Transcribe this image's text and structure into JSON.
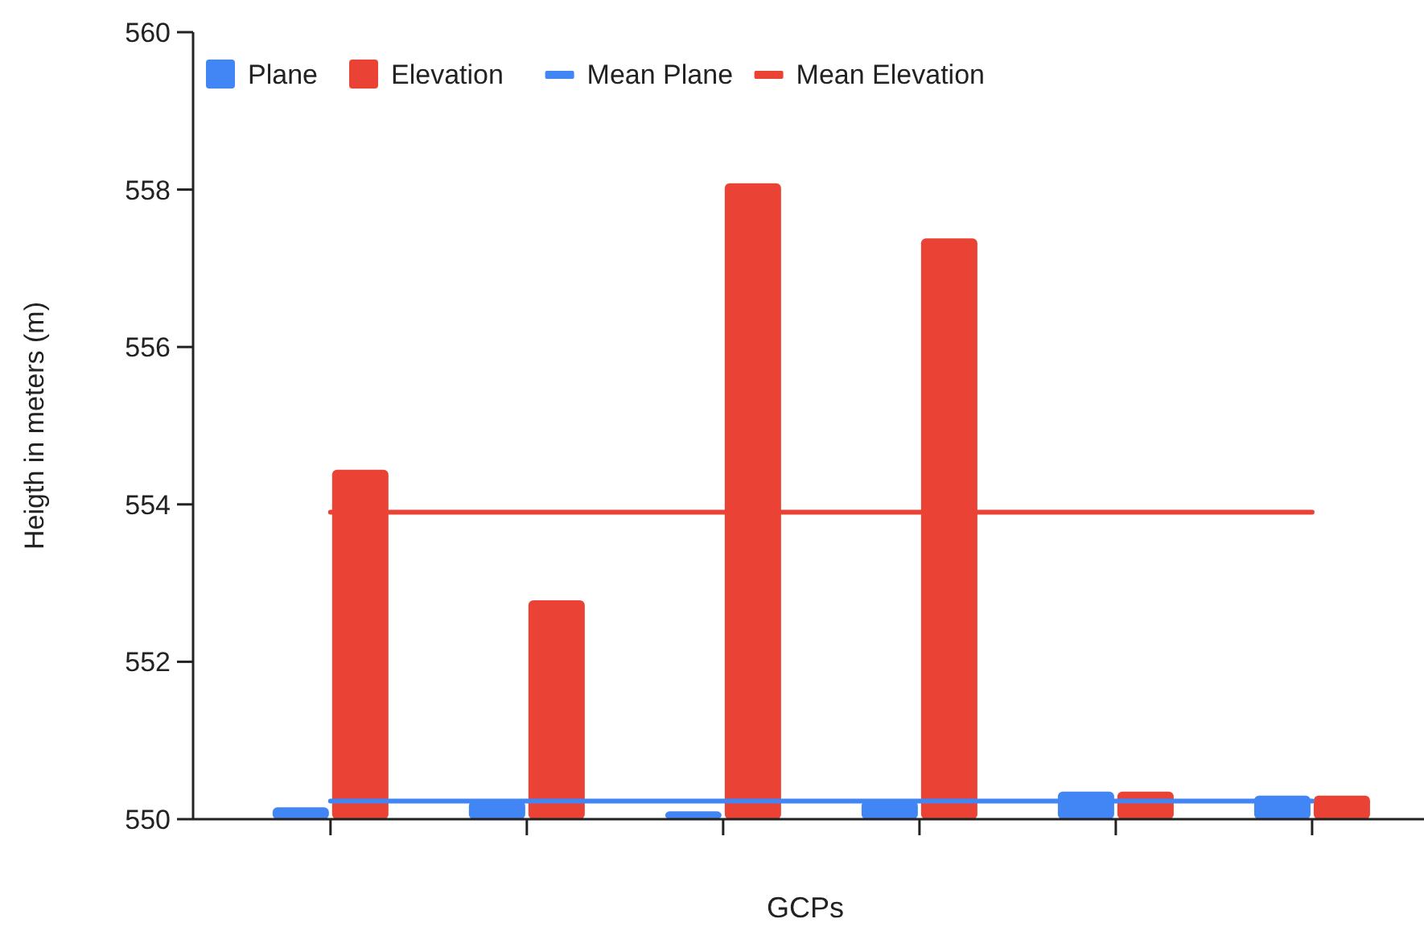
{
  "chart_data": {
    "type": "bar",
    "xlabel": "GCPs",
    "ylabel": "Heigth in meters (m)",
    "categories": [
      null,
      null,
      null,
      null,
      null,
      null
    ],
    "series": [
      {
        "name": "Plane",
        "color": "#4285f4",
        "values": [
          550.15,
          550.23,
          550.1,
          550.23,
          550.35,
          550.3
        ]
      },
      {
        "name": "Elevation",
        "color": "#ea4335",
        "values": [
          554.44,
          552.78,
          558.08,
          557.38,
          550.35,
          550.3
        ]
      },
      {
        "name": "Mean Plane",
        "type": "line",
        "color": "#4285f4",
        "values": [
          550.23,
          550.23,
          550.23,
          550.23,
          550.23,
          550.23
        ]
      },
      {
        "name": "Mean Elevation",
        "type": "line",
        "color": "#ea4335",
        "values": [
          553.9,
          553.9,
          553.9,
          553.9,
          553.9,
          553.9
        ]
      }
    ],
    "ylim": [
      550,
      560
    ],
    "yticks": [
      550,
      552,
      554,
      556,
      558,
      560
    ],
    "legend": "top left",
    "tick_labels": "y"
  }
}
